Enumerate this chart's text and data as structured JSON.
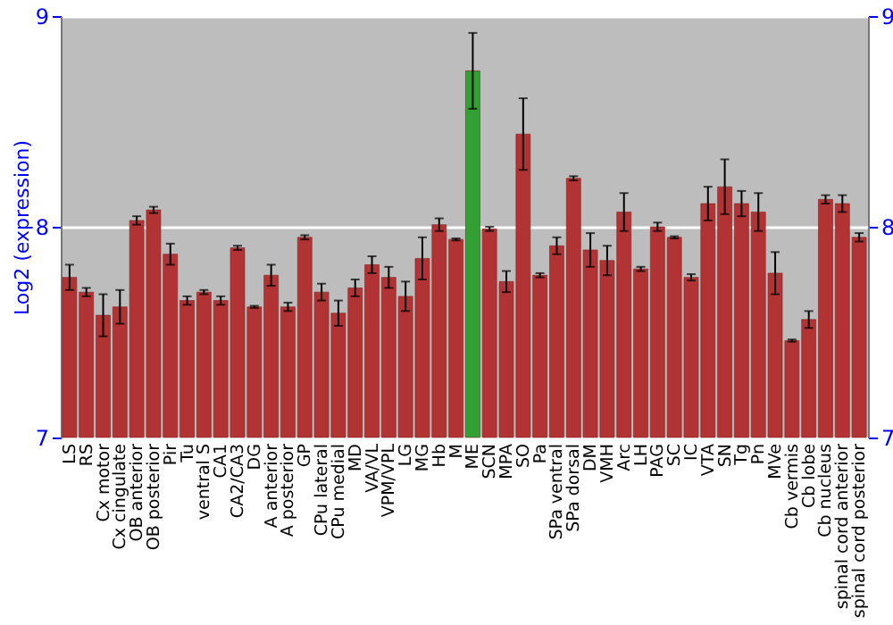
{
  "chart_data": {
    "type": "bar",
    "ylabel": "Log2 (expression)",
    "categories": [
      "LS",
      "RS",
      "Cx motor",
      "Cx cingulate",
      "OB anterior",
      "OB posterior",
      "Pir",
      "Tu",
      "ventral S",
      "CA1",
      "CA2/CA3",
      "DG",
      "A anterior",
      "A posterior",
      "GP",
      "CPu lateral",
      "CPu medial",
      "MD",
      "VA/VL",
      "VPM/VPL",
      "LG",
      "MG",
      "Hb",
      "M",
      "ME",
      "SCN",
      "MPA",
      "SO",
      "Pa",
      "SPa ventral",
      "SPa dorsal",
      "DM",
      "VMH",
      "Arc",
      "LH",
      "PAG",
      "SC",
      "IC",
      "VTA",
      "SN",
      "Tg",
      "Pn",
      "MVe",
      "Cb vermis",
      "Cb lobe",
      "Cb nucleus",
      "spinal cord anterior",
      "spinal cord posterior"
    ],
    "values": [
      7.76,
      7.69,
      7.58,
      7.62,
      8.03,
      8.08,
      7.87,
      7.65,
      7.69,
      7.65,
      7.9,
      7.62,
      7.77,
      7.62,
      7.95,
      7.69,
      7.59,
      7.71,
      7.82,
      7.76,
      7.67,
      7.85,
      8.01,
      7.94,
      8.74,
      7.99,
      7.74,
      8.44,
      7.77,
      7.91,
      8.23,
      7.89,
      7.84,
      8.07,
      7.8,
      8.0,
      7.95,
      7.76,
      8.11,
      8.19,
      8.11,
      8.07,
      7.78,
      7.46,
      7.56,
      8.13,
      8.11,
      7.95
    ],
    "errors": [
      0.06,
      0.02,
      0.1,
      0.08,
      0.02,
      0.015,
      0.05,
      0.02,
      0.01,
      0.02,
      0.01,
      0.005,
      0.05,
      0.02,
      0.01,
      0.04,
      0.06,
      0.04,
      0.04,
      0.05,
      0.07,
      0.1,
      0.03,
      0.005,
      0.18,
      0.01,
      0.05,
      0.17,
      0.01,
      0.04,
      0.01,
      0.08,
      0.07,
      0.09,
      0.01,
      0.02,
      0.005,
      0.015,
      0.08,
      0.13,
      0.06,
      0.09,
      0.1,
      0.005,
      0.04,
      0.02,
      0.04,
      0.02
    ],
    "colors": [
      "#b23333",
      "#b23333",
      "#b23333",
      "#b23333",
      "#b23333",
      "#b23333",
      "#b23333",
      "#b23333",
      "#b23333",
      "#b23333",
      "#b23333",
      "#b23333",
      "#b23333",
      "#b23333",
      "#b23333",
      "#b23333",
      "#b23333",
      "#b23333",
      "#b23333",
      "#b23333",
      "#b23333",
      "#b23333",
      "#b23333",
      "#b23333",
      "#33a033",
      "#b23333",
      "#b23333",
      "#b23333",
      "#b23333",
      "#b23333",
      "#b23333",
      "#b23333",
      "#b23333",
      "#b23333",
      "#b23333",
      "#b23333",
      "#b23333",
      "#b23333",
      "#b23333",
      "#b23333",
      "#b23333",
      "#b23333",
      "#b23333",
      "#b23333",
      "#b23333",
      "#b23333",
      "#b23333",
      "#b23333"
    ],
    "ylim": [
      7,
      9
    ],
    "yticks": [
      7,
      8,
      9
    ],
    "y2lim": [
      7,
      9
    ],
    "y2ticks": [
      7,
      8,
      9
    ],
    "grid": "y"
  }
}
